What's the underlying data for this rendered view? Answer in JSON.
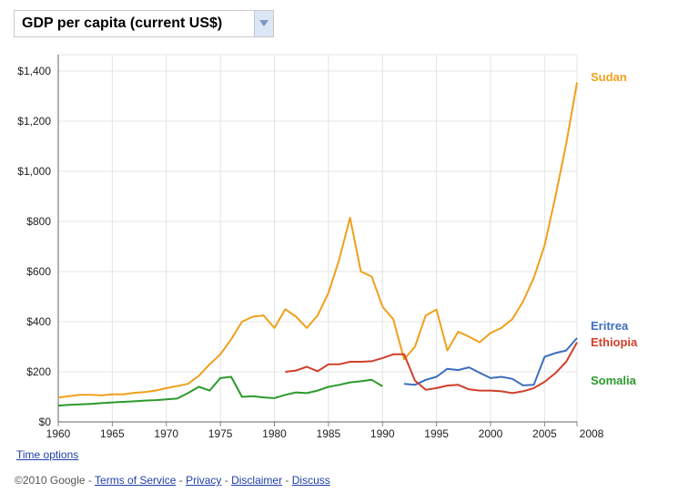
{
  "metric_selector": {
    "label": "GDP per capita (current US$)"
  },
  "time_options": "Time options",
  "footer": {
    "copyright": "©2010 Google",
    "sep": " - ",
    "links": [
      "Terms of Service",
      "Privacy",
      "Disclaimer",
      "Discuss"
    ]
  },
  "chart_data": {
    "type": "line",
    "title": "",
    "xlabel": "",
    "ylabel": "",
    "xlim": [
      1960,
      2008
    ],
    "ylim": [
      0,
      1400
    ],
    "x_ticks": [
      {
        "value": 1960,
        "label": "1960"
      },
      {
        "value": 1965,
        "label": "1965"
      },
      {
        "value": 1970,
        "label": "1970"
      },
      {
        "value": 1975,
        "label": "1975"
      },
      {
        "value": 1980,
        "label": "1980"
      },
      {
        "value": 1985,
        "label": "1985"
      },
      {
        "value": 1990,
        "label": "1990"
      },
      {
        "value": 1995,
        "label": "1995"
      },
      {
        "value": 2000,
        "label": "2000"
      },
      {
        "value": 2005,
        "label": "2005"
      },
      {
        "value": 2008,
        "label": "2008"
      }
    ],
    "y_ticks": [
      {
        "value": 0,
        "label": "$0"
      },
      {
        "value": 200,
        "label": "$200"
      },
      {
        "value": 400,
        "label": "$400"
      },
      {
        "value": 600,
        "label": "$600"
      },
      {
        "value": 800,
        "label": "$800"
      },
      {
        "value": 1000,
        "label": "$1,000"
      },
      {
        "value": 1200,
        "label": "$1,200"
      },
      {
        "value": 1400,
        "label": "$1,400"
      }
    ],
    "grid": true,
    "legend_position": "right (labels at line ends)",
    "series": [
      {
        "name": "Sudan",
        "color": "#f0a01c",
        "x": [
          1960,
          1961,
          1962,
          1963,
          1964,
          1965,
          1966,
          1967,
          1968,
          1969,
          1970,
          1971,
          1972,
          1973,
          1974,
          1975,
          1976,
          1977,
          1978,
          1979,
          1980,
          1981,
          1982,
          1983,
          1984,
          1985,
          1986,
          1987,
          1988,
          1989,
          1990,
          1991,
          1992,
          1993,
          1994,
          1995,
          1996,
          1997,
          1998,
          1999,
          2000,
          2001,
          2002,
          2003,
          2004,
          2005,
          2006,
          2007,
          2008
        ],
        "y": [
          97,
          103,
          108,
          108,
          106,
          110,
          110,
          116,
          119,
          125,
          135,
          143,
          152,
          184,
          230,
          270,
          330,
          400,
          420,
          425,
          375,
          450,
          420,
          375,
          425,
          515,
          650,
          815,
          600,
          580,
          460,
          410,
          250,
          300,
          425,
          448,
          285,
          360,
          340,
          318,
          355,
          375,
          410,
          480,
          575,
          705,
          900,
          1110,
          1355
        ]
      },
      {
        "name": "Eritrea",
        "color": "#3c6ebe",
        "x": [
          1992,
          1993,
          1994,
          1995,
          1996,
          1997,
          1998,
          1999,
          2000,
          2001,
          2002,
          2003,
          2004,
          2005,
          2006,
          2007,
          2008
        ],
        "y": [
          152,
          148,
          168,
          180,
          212,
          207,
          218,
          196,
          175,
          180,
          172,
          146,
          148,
          260,
          275,
          285,
          335
        ]
      },
      {
        "name": "Ethiopia",
        "color": "#d0402a",
        "x": [
          1981,
          1982,
          1983,
          1984,
          1985,
          1986,
          1987,
          1988,
          1989,
          1990,
          1991,
          1992,
          1993,
          1994,
          1995,
          1996,
          1997,
          1998,
          1999,
          2000,
          2001,
          2002,
          2003,
          2004,
          2005,
          2006,
          2007,
          2008
        ],
        "y": [
          200,
          205,
          220,
          202,
          230,
          230,
          240,
          240,
          242,
          255,
          270,
          270,
          165,
          128,
          135,
          145,
          148,
          130,
          125,
          125,
          122,
          115,
          122,
          135,
          160,
          195,
          240,
          318
        ]
      },
      {
        "name": "Somalia",
        "color": "#2c9a2c",
        "x": [
          1960,
          1961,
          1962,
          1963,
          1964,
          1965,
          1966,
          1967,
          1968,
          1969,
          1970,
          1971,
          1972,
          1973,
          1974,
          1975,
          1976,
          1977,
          1978,
          1979,
          1980,
          1981,
          1982,
          1983,
          1984,
          1985,
          1986,
          1987,
          1988,
          1989,
          1990
        ],
        "y": [
          65,
          68,
          70,
          72,
          75,
          78,
          80,
          82,
          85,
          87,
          90,
          93,
          115,
          140,
          125,
          175,
          180,
          100,
          103,
          98,
          95,
          108,
          118,
          115,
          125,
          140,
          148,
          158,
          162,
          168,
          142
        ]
      }
    ]
  }
}
